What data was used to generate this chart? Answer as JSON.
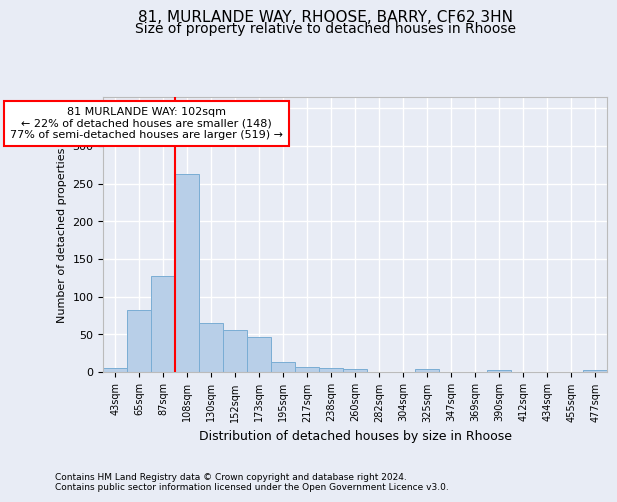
{
  "title1": "81, MURLANDE WAY, RHOOSE, BARRY, CF62 3HN",
  "title2": "Size of property relative to detached houses in Rhoose",
  "xlabel": "Distribution of detached houses by size in Rhoose",
  "ylabel": "Number of detached properties",
  "footnote": "Contains HM Land Registry data © Crown copyright and database right 2024.\nContains public sector information licensed under the Open Government Licence v3.0.",
  "bin_labels": [
    "43sqm",
    "65sqm",
    "87sqm",
    "108sqm",
    "130sqm",
    "152sqm",
    "173sqm",
    "195sqm",
    "217sqm",
    "238sqm",
    "260sqm",
    "282sqm",
    "304sqm",
    "325sqm",
    "347sqm",
    "369sqm",
    "390sqm",
    "412sqm",
    "434sqm",
    "455sqm",
    "477sqm"
  ],
  "bar_heights": [
    5,
    82,
    127,
    263,
    65,
    56,
    46,
    13,
    7,
    5,
    4,
    0,
    0,
    4,
    0,
    0,
    2,
    0,
    0,
    0,
    3
  ],
  "bar_color": "#b8cfe8",
  "bar_edge_color": "#7aadd4",
  "vline_x_idx": 3,
  "vline_color": "red",
  "annotation_text": "81 MURLANDE WAY: 102sqm\n← 22% of detached houses are smaller (148)\n77% of semi-detached houses are larger (519) →",
  "annotation_box_color": "white",
  "annotation_box_edge_color": "red",
  "ylim": [
    0,
    365
  ],
  "yticks": [
    0,
    50,
    100,
    150,
    200,
    250,
    300,
    350
  ],
  "background_color": "#e8ecf5",
  "plot_bg_color": "#e8ecf5",
  "title1_fontsize": 11,
  "title2_fontsize": 10,
  "grid_color": "white",
  "footnote_fontsize": 6.5
}
